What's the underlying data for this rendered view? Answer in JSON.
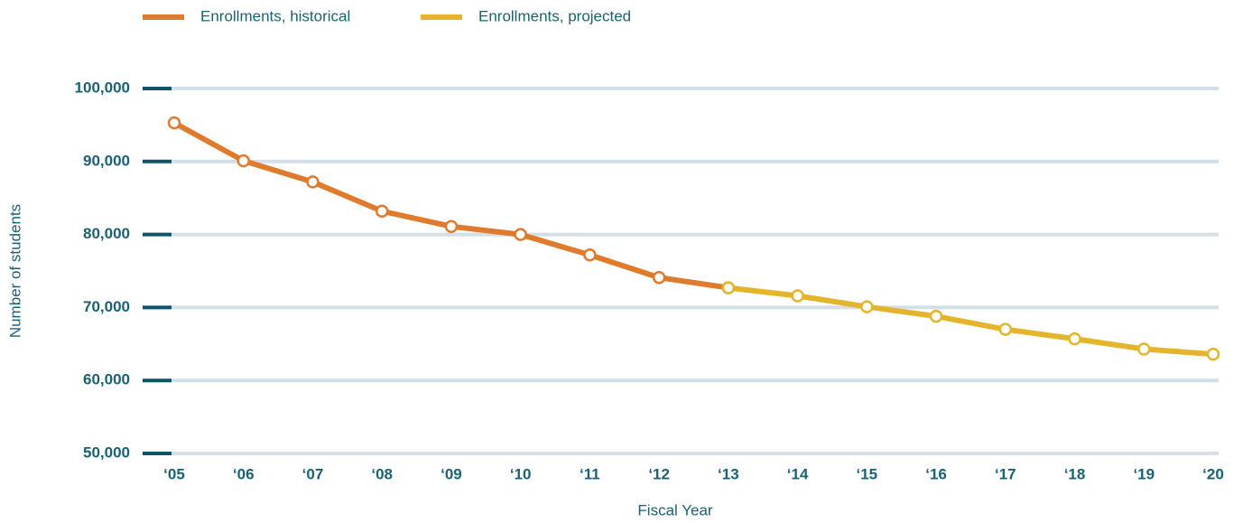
{
  "chart_data": {
    "type": "line",
    "x_label": "Fiscal Year",
    "y_label": "Number of students",
    "categories": [
      "‘05",
      "‘06",
      "‘07",
      "‘08",
      "‘09",
      "‘10",
      "‘11",
      "‘12",
      "‘13",
      "‘14",
      "‘15",
      "‘16",
      "‘17",
      "‘18",
      "‘19",
      "‘20"
    ],
    "series": [
      {
        "name": "Enrollments, historical",
        "color": "#e07b2e",
        "values": [
          95300,
          90100,
          87200,
          83200,
          81100,
          80000,
          77200,
          74100,
          72700,
          null,
          null,
          null,
          null,
          null,
          null,
          null
        ]
      },
      {
        "name": "Enrollments, projected",
        "color": "#e3b42c",
        "values": [
          null,
          null,
          null,
          null,
          null,
          null,
          null,
          null,
          72700,
          71600,
          70100,
          68800,
          67000,
          65700,
          64300,
          63600
        ]
      }
    ],
    "ylim": [
      50000,
      100000
    ],
    "yticks": [
      {
        "value": 50000,
        "label": "50,000"
      },
      {
        "value": 60000,
        "label": "60,000"
      },
      {
        "value": 70000,
        "label": "70,000"
      },
      {
        "value": 80000,
        "label": "80,000"
      },
      {
        "value": 90000,
        "label": "90,000"
      },
      {
        "value": 100000,
        "label": "100,000"
      }
    ],
    "grid": true,
    "legend": "top"
  }
}
